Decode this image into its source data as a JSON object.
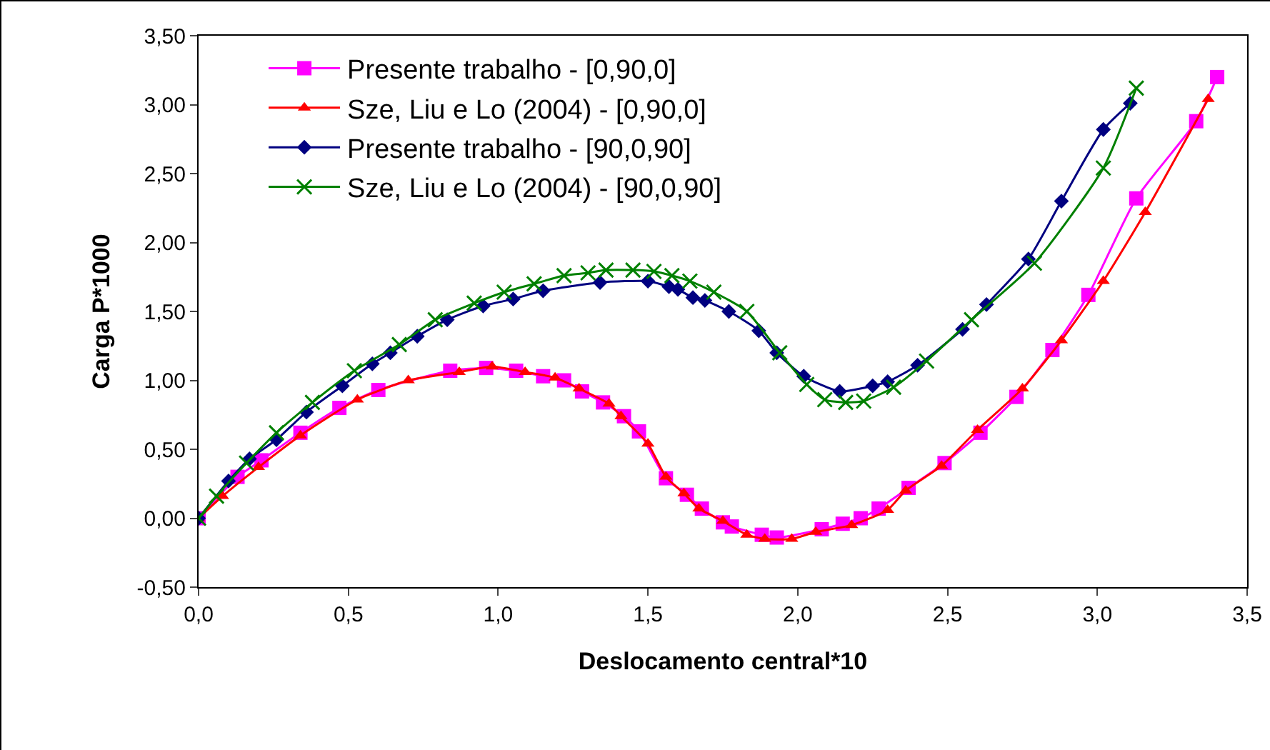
{
  "chart_data": {
    "type": "line",
    "xlabel": "Deslocamento central*10",
    "ylabel": "Carga P*1000",
    "xlim": [
      0,
      3.5
    ],
    "ylim": [
      -0.5,
      3.5
    ],
    "xticks": [
      {
        "value": 0,
        "label": "0,0"
      },
      {
        "value": 0.5,
        "label": "0,5"
      },
      {
        "value": 1,
        "label": "1,0"
      },
      {
        "value": 1.5,
        "label": "1,5"
      },
      {
        "value": 2,
        "label": "2,0"
      },
      {
        "value": 2.5,
        "label": "2,5"
      },
      {
        "value": 3,
        "label": "3,0"
      },
      {
        "value": 3.5,
        "label": "3,5"
      }
    ],
    "yticks": [
      {
        "value": -0.5,
        "label": "-0,50"
      },
      {
        "value": 0,
        "label": "0,00"
      },
      {
        "value": 0.5,
        "label": "0,50"
      },
      {
        "value": 1,
        "label": "1,00"
      },
      {
        "value": 1.5,
        "label": "1,50"
      },
      {
        "value": 2,
        "label": "2,00"
      },
      {
        "value": 2.5,
        "label": "2,50"
      },
      {
        "value": 3,
        "label": "3,00"
      },
      {
        "value": 3.5,
        "label": "3,50"
      }
    ],
    "grid": false,
    "legend": "top left",
    "series": [
      {
        "name": "Presente trabalho - [0,90,0]",
        "color": "#ff00ff",
        "marker": "square",
        "x": [
          0,
          0.13,
          0.21,
          0.34,
          0.47,
          0.6,
          0.84,
          0.96,
          1.06,
          1.15,
          1.22,
          1.28,
          1.35,
          1.42,
          1.47,
          1.56,
          1.63,
          1.68,
          1.75,
          1.78,
          1.88,
          1.93,
          2.08,
          2.15,
          2.21,
          2.27,
          2.37,
          2.49,
          2.61,
          2.73,
          2.85,
          2.97,
          3.13,
          3.33,
          3.4
        ],
        "values": [
          0,
          0.3,
          0.42,
          0.62,
          0.8,
          0.93,
          1.07,
          1.09,
          1.07,
          1.03,
          1.0,
          0.92,
          0.84,
          0.74,
          0.63,
          0.29,
          0.17,
          0.07,
          -0.03,
          -0.06,
          -0.12,
          -0.14,
          -0.08,
          -0.04,
          0.0,
          0.07,
          0.22,
          0.4,
          0.62,
          0.88,
          1.22,
          1.62,
          2.32,
          2.88,
          3.2
        ]
      },
      {
        "name": "Sze, Liu e Lo (2004) - [0,90,0]",
        "color": "#ff0000",
        "marker": "triangle",
        "x": [
          0,
          0.08,
          0.2,
          0.34,
          0.53,
          0.7,
          0.87,
          0.98,
          1.09,
          1.19,
          1.27,
          1.37,
          1.41,
          1.5,
          1.56,
          1.62,
          1.67,
          1.75,
          1.83,
          1.89,
          1.98,
          2.06,
          2.18,
          2.3,
          2.36,
          2.48,
          2.6,
          2.75,
          2.88,
          3.02,
          3.16,
          3.37
        ],
        "values": [
          0,
          0.16,
          0.37,
          0.6,
          0.86,
          1.0,
          1.06,
          1.1,
          1.06,
          1.02,
          0.94,
          0.83,
          0.74,
          0.54,
          0.3,
          0.18,
          0.07,
          -0.02,
          -0.12,
          -0.15,
          -0.15,
          -0.1,
          -0.05,
          0.06,
          0.2,
          0.38,
          0.64,
          0.94,
          1.29,
          1.72,
          2.22,
          3.04
        ]
      },
      {
        "name": "Presente trabalho - [90,0,90]",
        "color": "#000080",
        "marker": "diamond",
        "x": [
          0,
          0.1,
          0.17,
          0.26,
          0.36,
          0.48,
          0.58,
          0.64,
          0.73,
          0.83,
          0.95,
          1.05,
          1.15,
          1.34,
          1.5,
          1.57,
          1.6,
          1.65,
          1.69,
          1.77,
          1.87,
          1.93,
          2.02,
          2.14,
          2.25,
          2.3,
          2.4,
          2.55,
          2.63,
          2.77,
          2.88,
          3.02,
          3.11
        ],
        "values": [
          0,
          0.27,
          0.43,
          0.57,
          0.77,
          0.96,
          1.12,
          1.2,
          1.32,
          1.44,
          1.54,
          1.59,
          1.65,
          1.71,
          1.72,
          1.68,
          1.66,
          1.6,
          1.58,
          1.5,
          1.36,
          1.2,
          1.03,
          0.92,
          0.96,
          0.99,
          1.11,
          1.37,
          1.55,
          1.88,
          2.3,
          2.82,
          3.01
        ]
      },
      {
        "name": "Sze, Liu e Lo (2004) - [90,0,90]",
        "color": "#008000",
        "marker": "cross",
        "x": [
          0,
          0.06,
          0.16,
          0.26,
          0.38,
          0.52,
          0.67,
          0.79,
          0.92,
          1.02,
          1.12,
          1.22,
          1.3,
          1.36,
          1.45,
          1.52,
          1.58,
          1.64,
          1.72,
          1.83,
          1.94,
          2.03,
          2.09,
          2.16,
          2.22,
          2.32,
          2.43,
          2.58,
          2.79,
          3.02,
          3.13
        ],
        "values": [
          0,
          0.16,
          0.4,
          0.62,
          0.84,
          1.07,
          1.26,
          1.44,
          1.56,
          1.64,
          1.7,
          1.76,
          1.78,
          1.8,
          1.8,
          1.79,
          1.76,
          1.72,
          1.64,
          1.5,
          1.2,
          0.97,
          0.86,
          0.84,
          0.85,
          0.95,
          1.14,
          1.44,
          1.85,
          2.54,
          3.12
        ]
      }
    ]
  }
}
